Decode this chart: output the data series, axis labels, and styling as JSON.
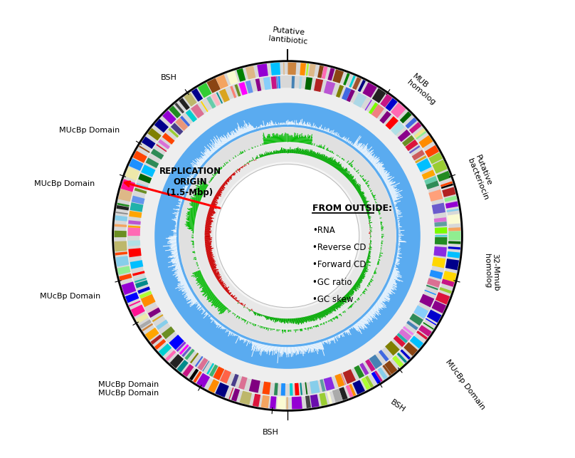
{
  "background_color": "#ffffff",
  "legend_title": "FROM OUTSIDE:",
  "legend_items": [
    "RNA",
    "Reverse CD",
    "Forward CD",
    "GC ratio",
    "GC skew"
  ],
  "replication_origin_text": "REPLICATION\nORIGIN\n(1.5-Mbp)",
  "gc_ratio_blue": "#5aabf0",
  "gc_skew_pos_color": "#00aa00",
  "gc_skew_neg_color": "#cc0000",
  "fwd_cd_color": "#00bb00",
  "rev_cd_color": "#dd0000",
  "gene_colors_outer": [
    "#8B4513",
    "#A0522D",
    "#D2691E",
    "#CD853F",
    "#DEB887",
    "#F4A460",
    "#000000",
    "#222222",
    "#444444",
    "#666666",
    "#888888",
    "#AAAAAA",
    "#FFD700",
    "#FFA500",
    "#FF8C00",
    "#FF4500",
    "#DC143C",
    "#B22222",
    "#8B0000",
    "#FF69B4",
    "#FF1493",
    "#C71585",
    "#9400D3",
    "#8B008B",
    "#800080",
    "#4B0082",
    "#6A0DAD",
    "#0000CD",
    "#00008B",
    "#000080",
    "#1E90FF",
    "#4169E1",
    "#0000FF",
    "#00BFFF",
    "#87CEEB",
    "#00CED1",
    "#008B8B",
    "#006400",
    "#008000",
    "#228B22",
    "#32CD32",
    "#90EE90",
    "#ADFF2F",
    "#9ACD32",
    "#6B8E23",
    "#808000",
    "#BDB76B",
    "#F0E68C",
    "#EEE8AA",
    "#FAFAD2"
  ],
  "gene_colors_inner": [
    "#8B4513",
    "#FF6347",
    "#FF4500",
    "#FFA07A",
    "#FA8072",
    "#E9967A",
    "#F08080",
    "#CD5C5C",
    "#DC143C",
    "#B22222",
    "#FF0000",
    "#FF69B4",
    "#FFB6C1",
    "#FFC0CB",
    "#DB7093",
    "#C71585",
    "#FF00FF",
    "#EE82EE",
    "#DA70D6",
    "#BA55D3",
    "#9932CC",
    "#8B008B",
    "#800080",
    "#9400D3",
    "#8A2BE2",
    "#6A5ACD",
    "#483D8B",
    "#7B68EE",
    "#4169E1",
    "#0000CD",
    "#0000FF",
    "#1E90FF",
    "#6495ED",
    "#00BFFF",
    "#87CEEB",
    "#ADD8E6",
    "#B0E0E6",
    "#87CEFA",
    "#4682B4",
    "#5F9EA0",
    "#00CED1",
    "#20B2AA",
    "#008B8B",
    "#66CDAA",
    "#3CB371",
    "#2E8B57",
    "#006400",
    "#228B22",
    "#32CD32",
    "#7CFC00",
    "#ADFF2F",
    "#9ACD32",
    "#6B8E23",
    "#808000",
    "#FFD700",
    "#FFA500",
    "#FF8C00",
    "#DAA520"
  ]
}
